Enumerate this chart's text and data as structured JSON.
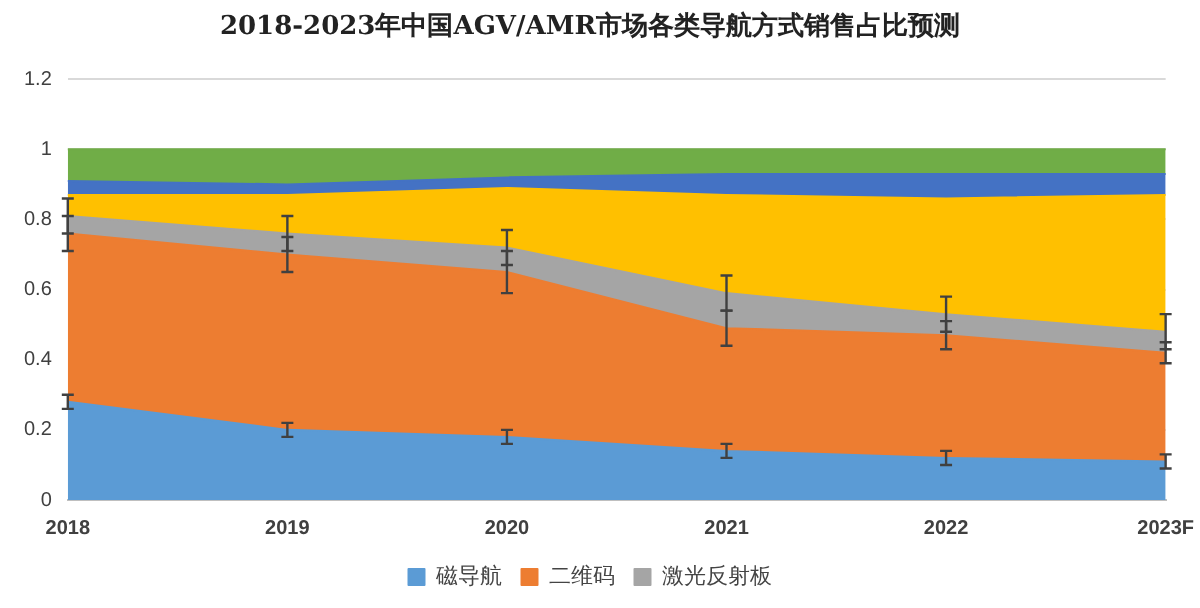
{
  "chart_data": {
    "type": "area",
    "stacked": true,
    "title": "2018-2023年中国AGV/AMR市场各类导航方式销售占比预测",
    "categories": [
      "2018",
      "2019",
      "2020",
      "2021",
      "2022",
      "2023F"
    ],
    "ylim": [
      0,
      1.2
    ],
    "yticks": [
      0,
      0.2,
      0.4,
      0.6,
      0.8,
      1,
      1.2
    ],
    "grid": "y",
    "legend": "bottom",
    "series": [
      {
        "name": "磁导航",
        "color": "#5b9bd5",
        "values": [
          0.28,
          0.2,
          0.18,
          0.14,
          0.12,
          0.11
        ],
        "errors": [
          0.02,
          0.02,
          0.02,
          0.02,
          0.02,
          0.02
        ]
      },
      {
        "name": "二维码",
        "color": "#ed7d31",
        "values": [
          0.48,
          0.5,
          0.47,
          0.35,
          0.35,
          0.31
        ],
        "errors": [
          0.05,
          0.05,
          0.06,
          0.05,
          0.04,
          0.03
        ]
      },
      {
        "name": "激光反射板",
        "color": "#a5a5a5",
        "values": [
          0.05,
          0.06,
          0.07,
          0.1,
          0.06,
          0.06
        ],
        "errors": [
          0.05,
          0.05,
          0.05,
          0.05,
          0.05,
          0.05
        ]
      },
      {
        "color": "#ffc000",
        "values": [
          0.06,
          0.11,
          0.17,
          0.28,
          0.33,
          0.39
        ]
      },
      {
        "color": "#4472c4",
        "values": [
          0.04,
          0.03,
          0.03,
          0.06,
          0.07,
          0.06
        ]
      },
      {
        "color": "#70ad47",
        "values": [
          0.09,
          0.1,
          0.08,
          0.07,
          0.07,
          0.07
        ]
      }
    ]
  }
}
